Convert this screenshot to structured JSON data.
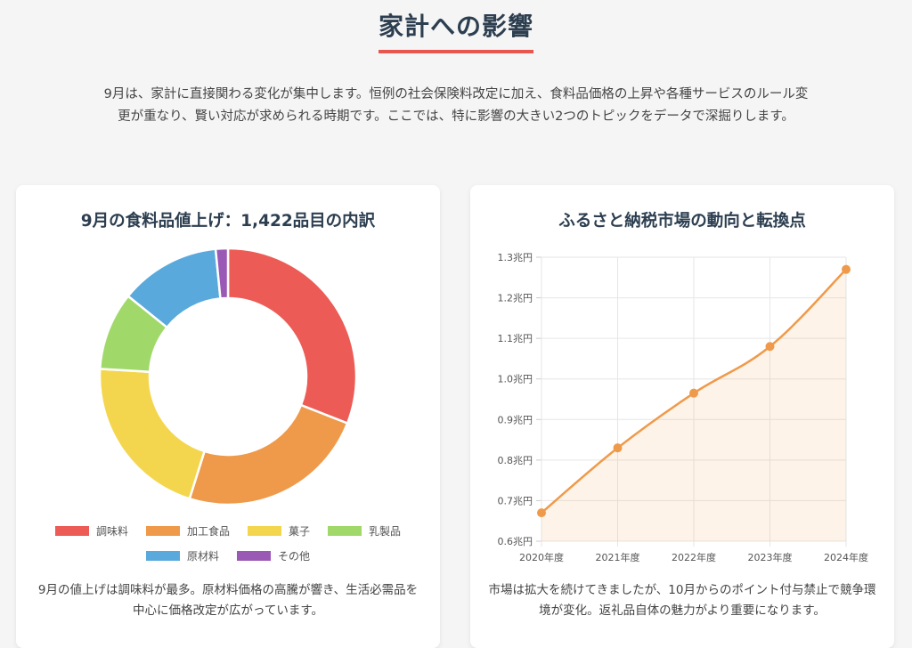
{
  "header": {
    "title": "家計への影響",
    "intro": "9月は、家計に直接関わる変化が集中します。恒例の社会保険料改定に加え、食料品価格の上昇や各種サービスのルール変更が重なり、賢い対応が求められる時期です。ここでは、特に影響の大きい2つのトピックをデータで深掘りします。"
  },
  "donut_card": {
    "title": "9月の食料品値上げ：1,422品目の内訳",
    "caption": "9月の値上げは調味料が最多。原材料価格の高騰が響き、生活必需品を中心に価格改定が広がっています。"
  },
  "line_card": {
    "title": "ふるさと納税市場の動向と転換点",
    "caption": "市場は拡大を続けてきましたが、10月からのポイント付与禁止で競争環境が変化。返礼品自体の魅力がより重要になります。"
  },
  "chart_data": [
    {
      "type": "pie",
      "title": "9月の食料品値上げ：1,422品目の内訳",
      "categories": [
        "調味料",
        "加工食品",
        "菓子",
        "乳製品",
        "原材料",
        "その他"
      ],
      "values": [
        440,
        340,
        300,
        140,
        180,
        22
      ],
      "colors": [
        "#ec5b55",
        "#ef9a4a",
        "#f4d64e",
        "#a0d96a",
        "#59a9dc",
        "#9b59b6"
      ],
      "legend": "bottom"
    },
    {
      "type": "area",
      "title": "ふるさと納税市場の動向と転換点",
      "x": [
        "2020年度",
        "2021年度",
        "2022年度",
        "2023年度",
        "2024年度"
      ],
      "y_tick_labels": [
        "0.6兆円",
        "0.7兆円",
        "0.8兆円",
        "0.9兆円",
        "1.0兆円",
        "1.1兆円",
        "1.2兆円",
        "1.3兆円"
      ],
      "series": [
        {
          "values": [
            0.67,
            0.83,
            0.965,
            1.08,
            1.27
          ]
        }
      ],
      "ylim": [
        0.6,
        1.3
      ],
      "grid": true,
      "color": "#ef9a4a"
    }
  ]
}
